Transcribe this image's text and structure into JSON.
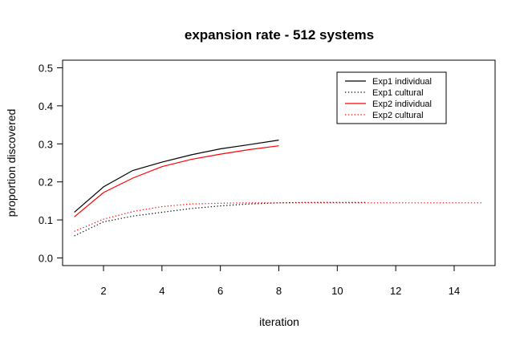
{
  "chart_data": {
    "type": "line",
    "title": "expansion rate - 512 systems",
    "xlabel": "iteration",
    "ylabel": "proportion discovered",
    "xlim": [
      0.6,
      15.4
    ],
    "ylim": [
      -0.02,
      0.52
    ],
    "xticks": [
      2,
      4,
      6,
      8,
      10,
      12,
      14
    ],
    "yticks": [
      0.0,
      0.1,
      0.2,
      0.3,
      0.4,
      0.5
    ],
    "xtick_labels": [
      "2",
      "4",
      "6",
      "8",
      "10",
      "12",
      "14"
    ],
    "ytick_labels": [
      "0.0",
      "0.1",
      "0.2",
      "0.3",
      "0.4",
      "0.5"
    ],
    "grid": false,
    "legend_position": "top-right",
    "series": [
      {
        "name": "Exp1 individual",
        "color": "#000000",
        "dash": "solid",
        "x": [
          1,
          2,
          3,
          4,
          5,
          6,
          7,
          8
        ],
        "y": [
          0.12,
          0.187,
          0.23,
          0.252,
          0.271,
          0.287,
          0.298,
          0.31
        ]
      },
      {
        "name": "Exp1 cultural",
        "color": "#000000",
        "dash": "dotted",
        "x": [
          1,
          2,
          3,
          4,
          5,
          6,
          7,
          8,
          9,
          10,
          11
        ],
        "y": [
          0.058,
          0.095,
          0.11,
          0.12,
          0.13,
          0.137,
          0.142,
          0.145,
          0.146,
          0.146,
          0.146
        ]
      },
      {
        "name": "Exp2 individual",
        "color": "#ff0000",
        "dash": "solid",
        "x": [
          1,
          2,
          3,
          4,
          5,
          6,
          7,
          8
        ],
        "y": [
          0.108,
          0.172,
          0.21,
          0.24,
          0.259,
          0.273,
          0.285,
          0.295
        ]
      },
      {
        "name": "Exp2 cultural",
        "color": "#ff0000",
        "dash": "dotted",
        "x": [
          1,
          2,
          3,
          4,
          5,
          6,
          7,
          8,
          9,
          10,
          11,
          12,
          13,
          14,
          15
        ],
        "y": [
          0.07,
          0.102,
          0.122,
          0.135,
          0.142,
          0.144,
          0.145,
          0.145,
          0.145,
          0.145,
          0.145,
          0.145,
          0.145,
          0.145,
          0.145
        ]
      }
    ]
  }
}
